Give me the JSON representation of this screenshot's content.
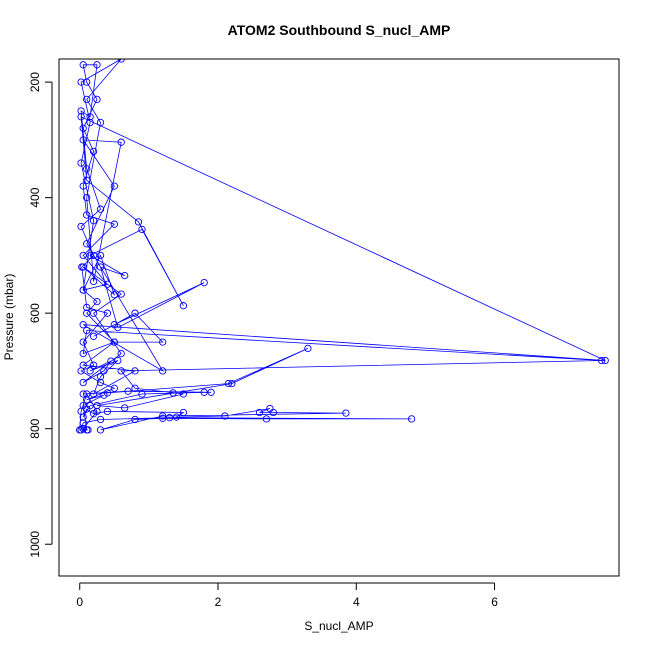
{
  "chart_data": {
    "type": "line",
    "title": "ATOM2 Southbound S_nucl_AMP",
    "xlabel": "S_nucl_AMP",
    "ylabel": "Pressure (mbar)",
    "xlim": [
      -0.3,
      7.8
    ],
    "ylim": [
      1055,
      160
    ],
    "y_reversed": true,
    "x_ticks": [
      0,
      2,
      4,
      6
    ],
    "y_ticks": [
      200,
      400,
      600,
      800,
      1000
    ],
    "grid": false,
    "legend": "none",
    "colors": {
      "series": "#0000ff",
      "axes": "#000000"
    },
    "marker": "open-circle",
    "series": [
      {
        "points": [
          [
            0.02,
            802
          ],
          [
            0.05,
            790
          ],
          [
            0.3,
            784
          ],
          [
            1.3,
            781
          ],
          [
            4.8,
            783
          ],
          [
            2.7,
            783
          ],
          [
            1.2,
            782
          ],
          [
            0.8,
            784
          ],
          [
            0.3,
            802
          ],
          [
            1.2,
            778
          ],
          [
            3.85,
            773
          ],
          [
            2.8,
            772
          ],
          [
            2.6,
            772
          ],
          [
            2.75,
            765
          ],
          [
            2.1,
            778
          ],
          [
            1.4,
            780
          ],
          [
            1.5,
            772
          ],
          [
            0.4,
            770
          ],
          [
            0.2,
            774
          ],
          [
            0.1,
            766
          ],
          [
            0.05,
            780
          ],
          [
            0.15,
            760
          ],
          [
            0.9,
            740
          ],
          [
            1.8,
            737
          ],
          [
            1.35,
            738
          ],
          [
            1.9,
            737
          ],
          [
            0.7,
            735
          ],
          [
            0.05,
            740
          ],
          [
            0.4,
            738
          ],
          [
            2.15,
            722
          ],
          [
            3.3,
            661
          ],
          [
            2.2,
            722
          ],
          [
            0.25,
            760
          ],
          [
            0.65,
            764
          ],
          [
            1.5,
            740
          ],
          [
            0.8,
            730
          ],
          [
            0.6,
            700
          ],
          [
            7.55,
            682
          ],
          [
            0.1,
            630
          ],
          [
            0.05,
            670
          ],
          [
            0.5,
            650
          ],
          [
            1.2,
            650
          ],
          [
            0.8,
            600
          ],
          [
            0.2,
            640
          ],
          [
            0.5,
            620
          ],
          [
            1.8,
            547
          ],
          [
            0.55,
            625
          ],
          [
            0.3,
            520
          ],
          [
            0.65,
            535
          ],
          [
            0.15,
            500
          ],
          [
            0.9,
            455
          ],
          [
            1.5,
            587
          ],
          [
            0.85,
            442
          ],
          [
            0.1,
            370
          ],
          [
            0.02,
            260
          ],
          [
            7.6,
            682
          ],
          [
            0.05,
            620
          ],
          [
            1.2,
            700
          ],
          [
            0.1,
            480
          ],
          [
            0.5,
            380
          ],
          [
            0.05,
            300
          ],
          [
            0.6,
            304
          ],
          [
            0.2,
            545
          ],
          [
            0.1,
            400
          ],
          [
            0.3,
            270
          ],
          [
            0.1,
            230
          ],
          [
            0.6,
            160
          ],
          [
            0.02,
            200
          ],
          [
            0.15,
            270
          ],
          [
            0.02,
            340
          ],
          [
            0.2,
            440
          ],
          [
            0.05,
            560
          ],
          [
            0.3,
            500
          ],
          [
            0.5,
            568
          ],
          [
            0.05,
            520
          ],
          [
            0.6,
            567
          ],
          [
            0.2,
            600
          ],
          [
            0.6,
            670
          ],
          [
            0.05,
            720
          ],
          [
            0.35,
            700
          ],
          [
            0.45,
            683
          ],
          [
            0.15,
            700
          ],
          [
            0.55,
            682
          ],
          [
            0.3,
            710
          ],
          [
            0.2,
            740
          ],
          [
            0.8,
            700
          ],
          [
            0.05,
            690
          ],
          [
            0.5,
            650
          ],
          [
            0.1,
            600
          ],
          [
            0.25,
            580
          ],
          [
            0.05,
            560
          ],
          [
            0.4,
            550
          ],
          [
            0.05,
            500
          ],
          [
            0.5,
            446
          ],
          [
            0.1,
            430
          ],
          [
            0.05,
            380
          ],
          [
            0.2,
            320
          ],
          [
            0.05,
            280
          ],
          [
            0.25,
            230
          ],
          [
            0.1,
            200
          ],
          [
            0.05,
            170
          ],
          [
            0.25,
            170
          ],
          [
            0.15,
            260
          ],
          [
            0.02,
            250
          ],
          [
            0.1,
            350
          ],
          [
            0.3,
            420
          ],
          [
            0.02,
            450
          ],
          [
            0.2,
            500
          ],
          [
            0.03,
            520
          ],
          [
            0.1,
            590
          ],
          [
            0.4,
            600
          ],
          [
            0.05,
            650
          ],
          [
            0.2,
            690
          ],
          [
            0.02,
            700
          ],
          [
            0.3,
            720
          ],
          [
            0.5,
            730
          ],
          [
            0.1,
            750
          ],
          [
            0.35,
            742
          ],
          [
            0.05,
            760
          ],
          [
            0.1,
            802
          ],
          [
            0.0,
            802
          ],
          [
            0.02,
            770
          ],
          [
            0.1,
            740
          ],
          [
            0.25,
            770
          ],
          [
            0.05,
            800
          ],
          [
            0.12,
            802
          ]
        ]
      }
    ]
  }
}
